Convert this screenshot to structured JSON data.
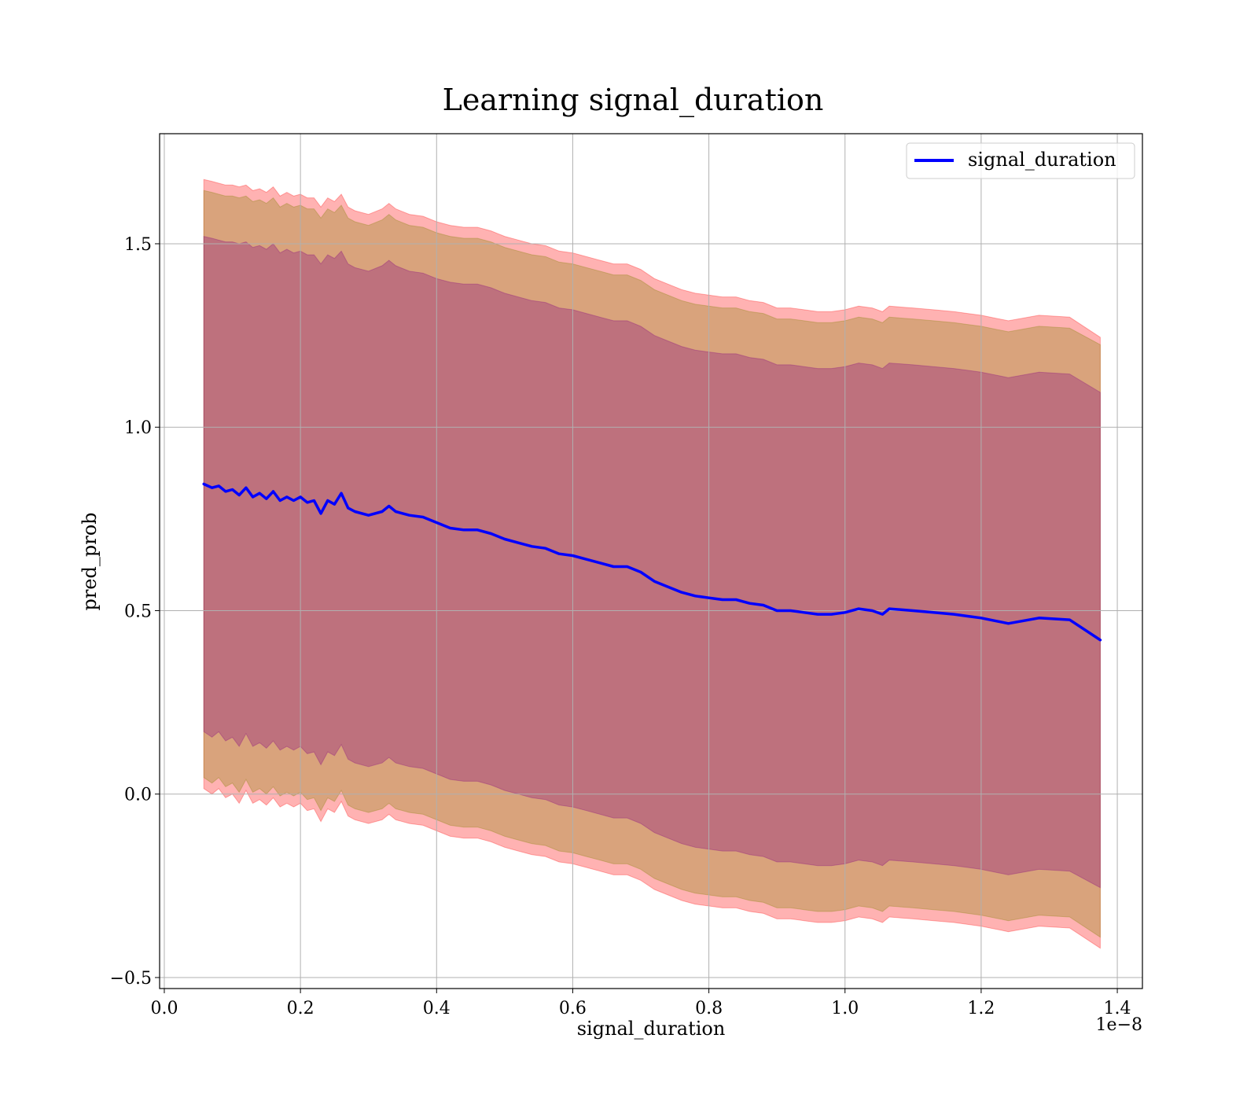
{
  "chart_data": {
    "type": "line",
    "title": "Learning signal_duration",
    "xlabel": "signal_duration",
    "ylabel": "pred_prob",
    "x_offset_label": "1e−8",
    "xlim": [
      -0.0069,
      1.4369
    ],
    "ylim": [
      -0.53,
      1.8
    ],
    "x_ticks": [
      0.0,
      0.2,
      0.4,
      0.6,
      0.8,
      1.0,
      1.2,
      1.4
    ],
    "x_tick_labels": [
      "0.0",
      "0.2",
      "0.4",
      "0.6",
      "0.8",
      "1.0",
      "1.2",
      "1.4"
    ],
    "y_ticks": [
      -0.5,
      0.0,
      0.5,
      1.0,
      1.5
    ],
    "y_tick_labels": [
      "−0.5",
      "0.0",
      "0.5",
      "1.0",
      "1.5"
    ],
    "grid": true,
    "legend": {
      "position": "top-right",
      "entries": [
        "signal_duration"
      ]
    },
    "x": [
      0.058,
      0.07,
      0.08,
      0.09,
      0.1,
      0.11,
      0.12,
      0.13,
      0.14,
      0.15,
      0.16,
      0.17,
      0.18,
      0.19,
      0.2,
      0.21,
      0.22,
      0.23,
      0.24,
      0.25,
      0.26,
      0.27,
      0.28,
      0.3,
      0.32,
      0.33,
      0.34,
      0.36,
      0.38,
      0.4,
      0.42,
      0.44,
      0.46,
      0.48,
      0.5,
      0.52,
      0.54,
      0.56,
      0.58,
      0.6,
      0.62,
      0.64,
      0.66,
      0.68,
      0.7,
      0.72,
      0.74,
      0.76,
      0.78,
      0.8,
      0.82,
      0.84,
      0.86,
      0.88,
      0.9,
      0.92,
      0.94,
      0.96,
      0.98,
      1.0,
      1.02,
      1.04,
      1.055,
      1.065,
      1.1,
      1.13,
      1.16,
      1.18,
      1.2,
      1.24,
      1.285,
      1.33,
      1.375
    ],
    "series": [
      {
        "name": "signal_duration",
        "color": "#0000ff",
        "values": [
          0.845,
          0.835,
          0.84,
          0.825,
          0.83,
          0.815,
          0.835,
          0.81,
          0.82,
          0.805,
          0.825,
          0.8,
          0.81,
          0.8,
          0.81,
          0.795,
          0.8,
          0.765,
          0.8,
          0.79,
          0.82,
          0.78,
          0.77,
          0.76,
          0.77,
          0.785,
          0.77,
          0.76,
          0.755,
          0.74,
          0.725,
          0.72,
          0.72,
          0.71,
          0.695,
          0.685,
          0.675,
          0.67,
          0.655,
          0.65,
          0.64,
          0.63,
          0.62,
          0.62,
          0.605,
          0.58,
          0.565,
          0.55,
          0.54,
          0.535,
          0.53,
          0.53,
          0.52,
          0.515,
          0.5,
          0.5,
          0.495,
          0.49,
          0.49,
          0.495,
          0.505,
          0.5,
          0.49,
          0.505,
          0.5,
          0.495,
          0.49,
          0.485,
          0.48,
          0.465,
          0.48,
          0.475,
          0.42
        ]
      }
    ],
    "bands": [
      {
        "color": "#ff0000",
        "opacity": 0.3,
        "upper": [
          1.675,
          1.67,
          1.665,
          1.66,
          1.66,
          1.655,
          1.66,
          1.645,
          1.65,
          1.64,
          1.655,
          1.63,
          1.64,
          1.63,
          1.635,
          1.625,
          1.625,
          1.6,
          1.625,
          1.615,
          1.635,
          1.6,
          1.59,
          1.58,
          1.595,
          1.61,
          1.595,
          1.58,
          1.575,
          1.56,
          1.55,
          1.545,
          1.545,
          1.535,
          1.52,
          1.51,
          1.5,
          1.495,
          1.48,
          1.475,
          1.465,
          1.455,
          1.445,
          1.445,
          1.43,
          1.405,
          1.39,
          1.375,
          1.365,
          1.36,
          1.355,
          1.355,
          1.345,
          1.34,
          1.325,
          1.325,
          1.32,
          1.315,
          1.315,
          1.32,
          1.33,
          1.325,
          1.315,
          1.33,
          1.325,
          1.32,
          1.315,
          1.31,
          1.305,
          1.29,
          1.305,
          1.3,
          1.245
        ],
        "lower": [
          0.015,
          0.0,
          0.015,
          -0.01,
          0.0,
          -0.025,
          0.01,
          -0.025,
          -0.015,
          -0.03,
          -0.01,
          -0.035,
          -0.025,
          -0.035,
          -0.025,
          -0.045,
          -0.04,
          -0.075,
          -0.04,
          -0.05,
          -0.02,
          -0.06,
          -0.07,
          -0.08,
          -0.07,
          -0.055,
          -0.07,
          -0.08,
          -0.085,
          -0.1,
          -0.115,
          -0.12,
          -0.12,
          -0.13,
          -0.145,
          -0.155,
          -0.165,
          -0.17,
          -0.185,
          -0.19,
          -0.2,
          -0.21,
          -0.22,
          -0.22,
          -0.235,
          -0.26,
          -0.275,
          -0.29,
          -0.3,
          -0.305,
          -0.31,
          -0.31,
          -0.32,
          -0.325,
          -0.34,
          -0.34,
          -0.345,
          -0.35,
          -0.35,
          -0.345,
          -0.335,
          -0.34,
          -0.35,
          -0.335,
          -0.34,
          -0.345,
          -0.35,
          -0.355,
          -0.36,
          -0.375,
          -0.36,
          -0.365,
          -0.42
        ]
      },
      {
        "color": "#808000",
        "opacity": 0.3,
        "upper": [
          1.645,
          1.64,
          1.635,
          1.63,
          1.63,
          1.625,
          1.63,
          1.615,
          1.62,
          1.61,
          1.625,
          1.6,
          1.61,
          1.6,
          1.605,
          1.595,
          1.595,
          1.57,
          1.595,
          1.585,
          1.605,
          1.57,
          1.56,
          1.55,
          1.565,
          1.58,
          1.565,
          1.55,
          1.545,
          1.53,
          1.52,
          1.515,
          1.515,
          1.505,
          1.49,
          1.48,
          1.47,
          1.465,
          1.45,
          1.445,
          1.435,
          1.425,
          1.415,
          1.415,
          1.4,
          1.375,
          1.36,
          1.345,
          1.335,
          1.33,
          1.325,
          1.325,
          1.315,
          1.31,
          1.295,
          1.295,
          1.29,
          1.285,
          1.285,
          1.29,
          1.3,
          1.295,
          1.285,
          1.3,
          1.295,
          1.29,
          1.285,
          1.28,
          1.275,
          1.26,
          1.275,
          1.27,
          1.225
        ],
        "lower": [
          0.045,
          0.03,
          0.045,
          0.02,
          0.03,
          0.005,
          0.04,
          0.005,
          0.015,
          0.0,
          0.02,
          -0.005,
          0.005,
          -0.005,
          0.005,
          -0.015,
          -0.01,
          -0.045,
          -0.01,
          -0.02,
          0.01,
          -0.03,
          -0.04,
          -0.05,
          -0.04,
          -0.025,
          -0.04,
          -0.05,
          -0.055,
          -0.07,
          -0.085,
          -0.09,
          -0.09,
          -0.1,
          -0.115,
          -0.125,
          -0.135,
          -0.14,
          -0.155,
          -0.16,
          -0.17,
          -0.18,
          -0.19,
          -0.19,
          -0.205,
          -0.23,
          -0.245,
          -0.26,
          -0.27,
          -0.275,
          -0.28,
          -0.28,
          -0.29,
          -0.295,
          -0.31,
          -0.31,
          -0.315,
          -0.32,
          -0.32,
          -0.315,
          -0.305,
          -0.31,
          -0.32,
          -0.305,
          -0.31,
          -0.315,
          -0.32,
          -0.325,
          -0.33,
          -0.345,
          -0.33,
          -0.335,
          -0.39
        ]
      },
      {
        "color": "#800080",
        "opacity": 0.3,
        "upper": [
          1.52,
          1.515,
          1.51,
          1.505,
          1.505,
          1.5,
          1.505,
          1.49,
          1.495,
          1.485,
          1.5,
          1.475,
          1.485,
          1.475,
          1.48,
          1.47,
          1.47,
          1.445,
          1.47,
          1.46,
          1.48,
          1.445,
          1.435,
          1.425,
          1.44,
          1.455,
          1.44,
          1.425,
          1.42,
          1.405,
          1.395,
          1.39,
          1.39,
          1.38,
          1.365,
          1.355,
          1.345,
          1.34,
          1.325,
          1.32,
          1.31,
          1.3,
          1.29,
          1.29,
          1.275,
          1.25,
          1.235,
          1.22,
          1.21,
          1.205,
          1.2,
          1.2,
          1.19,
          1.185,
          1.17,
          1.17,
          1.165,
          1.16,
          1.16,
          1.165,
          1.175,
          1.17,
          1.16,
          1.175,
          1.17,
          1.165,
          1.16,
          1.155,
          1.15,
          1.135,
          1.15,
          1.145,
          1.095
        ],
        "lower": [
          0.17,
          0.155,
          0.17,
          0.145,
          0.155,
          0.13,
          0.165,
          0.13,
          0.14,
          0.125,
          0.145,
          0.12,
          0.13,
          0.12,
          0.13,
          0.11,
          0.115,
          0.08,
          0.115,
          0.105,
          0.135,
          0.095,
          0.085,
          0.075,
          0.085,
          0.1,
          0.085,
          0.075,
          0.07,
          0.055,
          0.04,
          0.035,
          0.035,
          0.025,
          0.01,
          0.0,
          -0.01,
          -0.015,
          -0.03,
          -0.035,
          -0.045,
          -0.055,
          -0.065,
          -0.065,
          -0.08,
          -0.105,
          -0.12,
          -0.135,
          -0.145,
          -0.15,
          -0.155,
          -0.155,
          -0.165,
          -0.17,
          -0.185,
          -0.185,
          -0.19,
          -0.195,
          -0.195,
          -0.19,
          -0.18,
          -0.185,
          -0.195,
          -0.18,
          -0.185,
          -0.19,
          -0.195,
          -0.2,
          -0.205,
          -0.22,
          -0.205,
          -0.21,
          -0.255
        ]
      }
    ]
  }
}
